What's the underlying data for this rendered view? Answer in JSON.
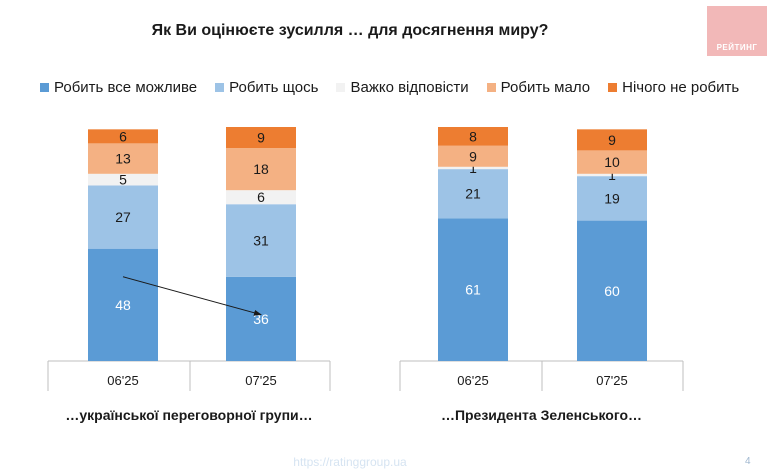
{
  "title": "Як Ви оцінюєте зусилля … для досягнення миру?",
  "logo_text": "РЕЙТИНГ",
  "footer_url": "https://ratinggroup.ua",
  "page_number": "4",
  "colors": {
    "all_possible": "#5b9bd5",
    "something": "#9dc3e6",
    "hard_to_say": "#f2f2f2",
    "little": "#f4b183",
    "nothing": "#ed7d31",
    "axis": "#bfbfbf",
    "label_light": "#ffffff",
    "label_dark": "#1a1a1a"
  },
  "chart_data": {
    "type": "bar",
    "stacked": true,
    "legend": [
      {
        "key": "all_possible",
        "label": "Робить все можливе"
      },
      {
        "key": "something",
        "label": "Робить щось"
      },
      {
        "key": "hard_to_say",
        "label": "Важко відповісти"
      },
      {
        "key": "little",
        "label": "Робить мало"
      },
      {
        "key": "nothing",
        "label": "Нічого не робить"
      }
    ],
    "ylim": [
      0,
      100
    ],
    "panels": [
      {
        "group_label": "…української переговорної групи…",
        "categories": [
          "06'25",
          "07'25"
        ],
        "series": [
          {
            "key": "all_possible",
            "values": [
              48,
              36
            ]
          },
          {
            "key": "something",
            "values": [
              27,
              31
            ]
          },
          {
            "key": "hard_to_say",
            "values": [
              5,
              6
            ]
          },
          {
            "key": "little",
            "values": [
              13,
              18
            ]
          },
          {
            "key": "nothing",
            "values": [
              6,
              9
            ]
          }
        ],
        "annotation": "arrow from 06'25 to 07'25 showing decline of \"Робить все можливе\""
      },
      {
        "group_label": "…Президента Зеленського…",
        "categories": [
          "06'25",
          "07'25"
        ],
        "series": [
          {
            "key": "all_possible",
            "values": [
              61,
              60
            ]
          },
          {
            "key": "something",
            "values": [
              21,
              19
            ]
          },
          {
            "key": "hard_to_say",
            "values": [
              1,
              1
            ]
          },
          {
            "key": "little",
            "values": [
              9,
              10
            ]
          },
          {
            "key": "nothing",
            "values": [
              8,
              9
            ]
          }
        ]
      }
    ]
  }
}
